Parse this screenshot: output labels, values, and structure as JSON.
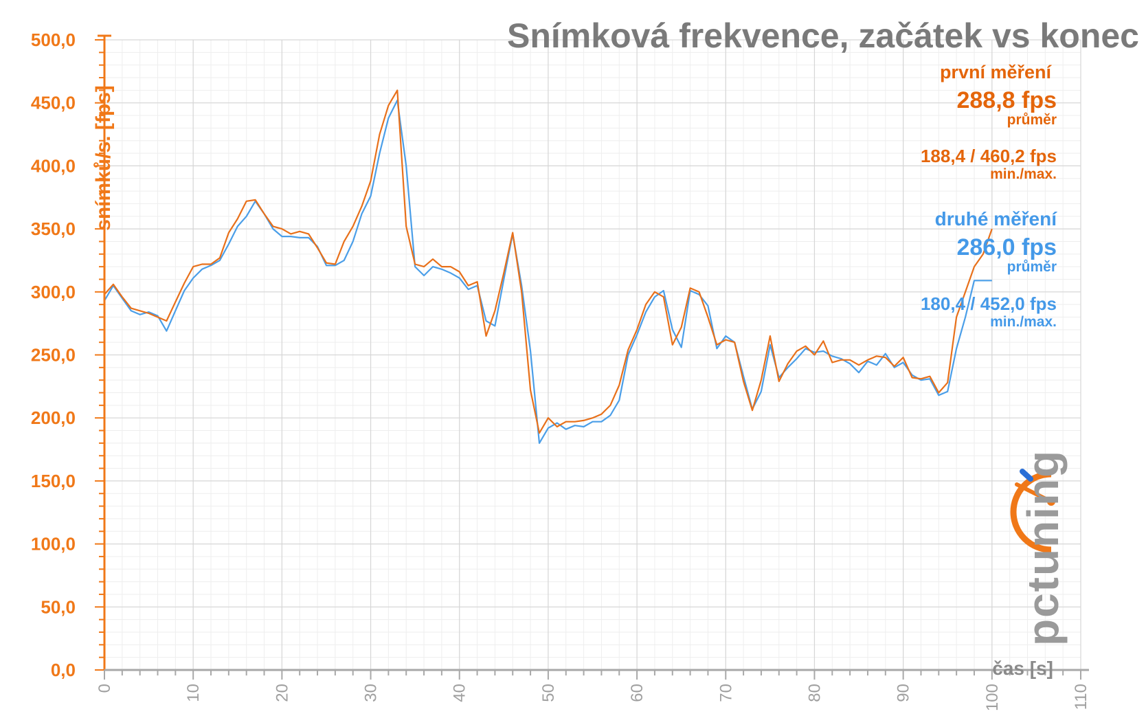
{
  "chart_data": {
    "type": "line",
    "title": "Snímková frekvence, začátek vs konec",
    "xlabel": "čas [s]",
    "ylabel": "snímků/s. [fps]",
    "xlim": [
      0,
      110
    ],
    "ylim": [
      0,
      500
    ],
    "xticks": [
      "0",
      "10",
      "20",
      "30",
      "40",
      "50",
      "60",
      "70",
      "80",
      "90",
      "100",
      "110"
    ],
    "yticks": [
      "0,0",
      "50,0",
      "100,0",
      "150,0",
      "200,0",
      "250,0",
      "300,0",
      "350,0",
      "400,0",
      "450,0",
      "500,0"
    ],
    "grid": true,
    "series": [
      {
        "name": "druhé měření",
        "color": "#4a9ee8",
        "x": [
          0,
          1,
          2,
          3,
          4,
          5,
          6,
          7,
          8,
          9,
          10,
          11,
          12,
          13,
          14,
          15,
          16,
          17,
          18,
          19,
          20,
          21,
          22,
          23,
          24,
          25,
          26,
          27,
          28,
          29,
          30,
          31,
          32,
          33,
          34,
          35,
          36,
          37,
          38,
          39,
          40,
          41,
          42,
          43,
          44,
          45,
          46,
          47,
          48,
          49,
          50,
          51,
          52,
          53,
          54,
          55,
          56,
          57,
          58,
          59,
          60,
          61,
          62,
          63,
          64,
          65,
          66,
          67,
          68,
          69,
          70,
          71,
          72,
          73,
          74,
          75,
          76,
          77,
          78,
          79,
          80,
          81,
          82,
          83,
          84,
          85,
          86,
          87,
          88,
          89,
          90,
          91,
          92,
          93,
          94,
          95,
          96,
          97,
          98,
          99,
          100
        ],
        "values": [
          293,
          305,
          295,
          285,
          282,
          284,
          281,
          269,
          285,
          301,
          311,
          318,
          321,
          325,
          338,
          352,
          360,
          372,
          362,
          350,
          344,
          344,
          343,
          343,
          336,
          321,
          321,
          325,
          340,
          362,
          376,
          410,
          438,
          452,
          400,
          320,
          313,
          320,
          318,
          315,
          311,
          302,
          305,
          277,
          273,
          310,
          346,
          305,
          253,
          180,
          192,
          196,
          191,
          194,
          193,
          197,
          197,
          202,
          214,
          250,
          266,
          284,
          296,
          301,
          270,
          256,
          301,
          298,
          289,
          255,
          265,
          260,
          233,
          207,
          221,
          258,
          232,
          240,
          247,
          255,
          252,
          253,
          249,
          247,
          243,
          236,
          245,
          242,
          251,
          240,
          244,
          234,
          230,
          231,
          218,
          221,
          255,
          280,
          309,
          309,
          309
        ]
      },
      {
        "name": "první měření",
        "color": "#e8701a",
        "x": [
          0,
          1,
          2,
          3,
          4,
          5,
          6,
          7,
          8,
          9,
          10,
          11,
          12,
          13,
          14,
          15,
          16,
          17,
          18,
          19,
          20,
          21,
          22,
          23,
          24,
          25,
          26,
          27,
          28,
          29,
          30,
          31,
          32,
          33,
          34,
          35,
          36,
          37,
          38,
          39,
          40,
          41,
          42,
          43,
          44,
          45,
          46,
          47,
          48,
          49,
          50,
          51,
          52,
          53,
          54,
          55,
          56,
          57,
          58,
          59,
          60,
          61,
          62,
          63,
          64,
          65,
          66,
          67,
          68,
          69,
          70,
          71,
          72,
          73,
          74,
          75,
          76,
          77,
          78,
          79,
          80,
          81,
          82,
          83,
          84,
          85,
          86,
          87,
          88,
          89,
          90,
          91,
          92,
          93,
          94,
          95,
          96,
          97,
          98,
          99,
          100
        ],
        "values": [
          298,
          306,
          296,
          287,
          285,
          283,
          280,
          277,
          292,
          307,
          320,
          322,
          322,
          327,
          347,
          358,
          372,
          373,
          362,
          352,
          350,
          346,
          348,
          346,
          335,
          323,
          322,
          340,
          352,
          368,
          388,
          425,
          448,
          460,
          352,
          322,
          320,
          326,
          320,
          320,
          316,
          305,
          308,
          265,
          285,
          315,
          347,
          300,
          222,
          188,
          200,
          193,
          197,
          197,
          198,
          200,
          203,
          210,
          226,
          254,
          270,
          290,
          300,
          296,
          258,
          272,
          303,
          300,
          280,
          258,
          262,
          260,
          229,
          206,
          230,
          265,
          229,
          243,
          253,
          257,
          250,
          261,
          244,
          246,
          246,
          242,
          246,
          249,
          248,
          241,
          248,
          232,
          231,
          233,
          220,
          228,
          280,
          300,
          320,
          330,
          350
        ]
      }
    ]
  },
  "annotations": {
    "first": {
      "name": "první měření",
      "avg": "288,8 fps",
      "avg_label": "průměr",
      "minmax": "188,4 / 460,2 fps",
      "minmax_label": "min./max."
    },
    "second": {
      "name": "druhé měření",
      "avg": "286,0 fps",
      "avg_label": "průměr",
      "minmax": "180,4 / 452,0 fps",
      "minmax_label": "min./max."
    }
  },
  "logo": {
    "text": "pctuning",
    "colors": {
      "orange": "#f07818",
      "blue": "#2a6fd6",
      "gray": "#9a9a9a"
    }
  }
}
